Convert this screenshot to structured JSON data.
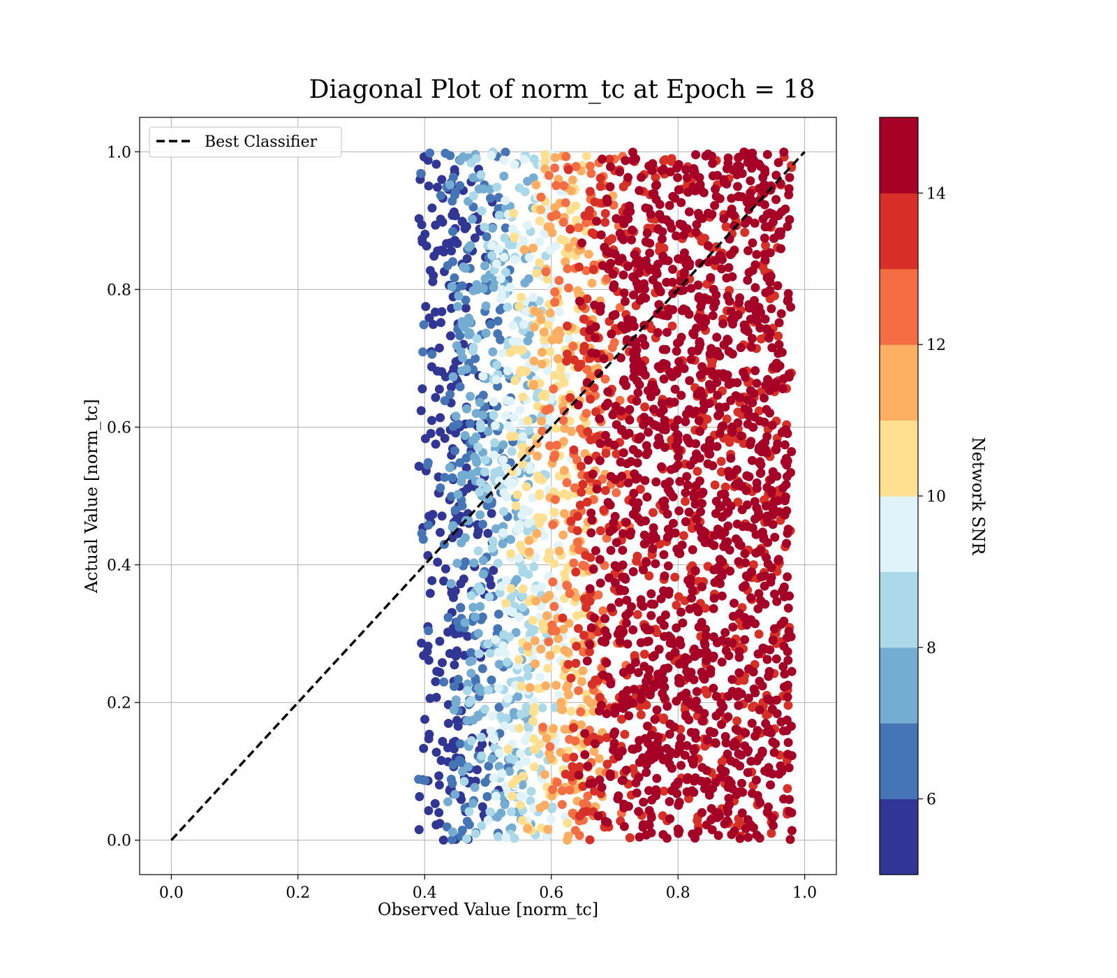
{
  "chart_data": {
    "type": "scatter",
    "title": "Diagonal Plot of norm_tc at Epoch = 18",
    "xlabel": "Observed Value [norm_tc]",
    "ylabel": "Actual Value [norm_tc]",
    "xlim": [
      -0.05,
      1.05
    ],
    "ylim": [
      -0.05,
      1.05
    ],
    "xticks": [
      0.0,
      0.2,
      0.4,
      0.6,
      0.8,
      1.0
    ],
    "xtick_labels": [
      "0.0",
      "0.2",
      "0.4",
      "0.6",
      "0.8",
      "1.0"
    ],
    "yticks": [
      0.0,
      0.2,
      0.4,
      0.6,
      0.8,
      1.0
    ],
    "ytick_labels": [
      "0.0",
      "0.2",
      "0.4",
      "0.6",
      "0.8",
      "1.0"
    ],
    "grid": true,
    "legend": {
      "placement": "upper-left",
      "entries": [
        {
          "label": "Best Classifier",
          "style": "dashed",
          "color": "#000000"
        }
      ]
    },
    "reference_line": {
      "name": "Best Classifier",
      "x": [
        0.0,
        1.0
      ],
      "y": [
        0.0,
        1.0
      ]
    },
    "scatter_summary": {
      "x_range": [
        0.39,
        1.0
      ],
      "y_range": [
        0.0,
        1.0
      ],
      "color_by": "Network SNR",
      "trend": "SNR increases with observed value; x < 0.45 mostly SNR 5-7, x 0.45-0.6 mostly 8-11, x 0.6-0.72 mixed 11-14, x > 0.72 mostly 14-15"
    },
    "colorbar": {
      "label": "Network SNR",
      "range": [
        5,
        15
      ],
      "ticks": [
        6,
        8,
        10,
        12,
        14
      ],
      "tick_labels": [
        "6",
        "8",
        "10",
        "12",
        "14"
      ],
      "colors": [
        "#313695",
        "#4575b4",
        "#74add1",
        "#abd9e9",
        "#e0f3f8",
        "#fee090",
        "#fdae61",
        "#f46d43",
        "#d73027",
        "#a50026"
      ]
    }
  }
}
